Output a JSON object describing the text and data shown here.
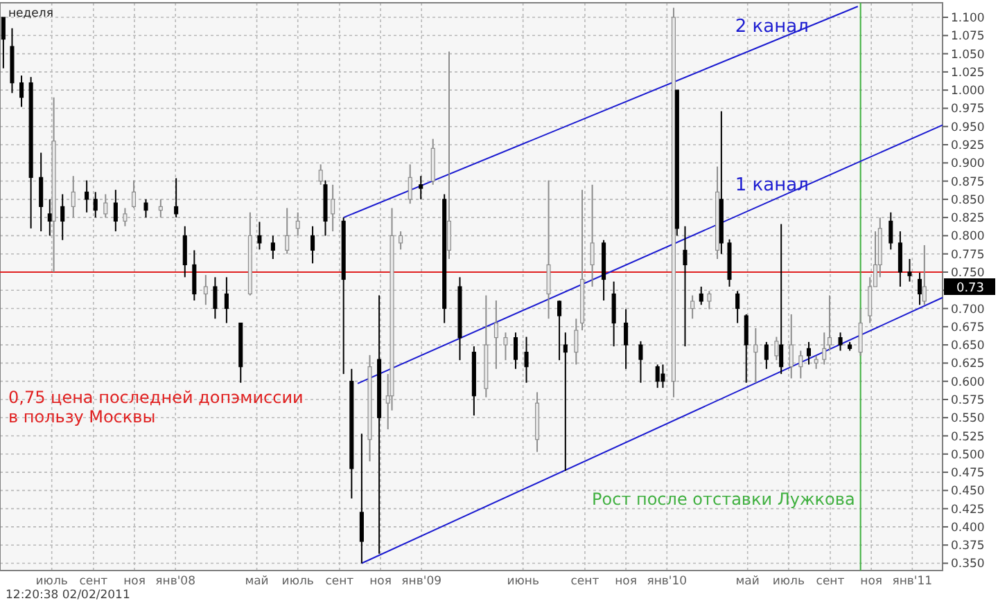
{
  "chart_data": {
    "type": "candlestick",
    "title": "неделя",
    "x": [
      "2007-04-20",
      "2007-05-03",
      "2007-05-17",
      "2007-05-31",
      "2007-06-15",
      "2007-06-28",
      "2007-07-04",
      "2007-07-17",
      "2007-08-02",
      "2007-08-22",
      "2007-09-04",
      "2007-09-19",
      "2007-10-04",
      "2007-10-18",
      "2007-10-31",
      "2007-11-18",
      "2007-12-10",
      "2008-01-02",
      "2008-01-15",
      "2008-01-29",
      "2008-02-15",
      "2008-02-29",
      "2008-03-17",
      "2008-04-07",
      "2008-04-21",
      "2008-05-05",
      "2008-05-25",
      "2008-06-15",
      "2008-07-01",
      "2008-07-23",
      "2008-08-04",
      "2008-08-11",
      "2008-08-22",
      "2008-09-07",
      "2008-09-19",
      "2008-10-04",
      "2008-10-16",
      "2008-10-30",
      "2008-11-12",
      "2008-11-18",
      "2008-12-01",
      "2008-12-15",
      "2008-12-31",
      "2009-01-18",
      "2009-02-04",
      "2009-02-11",
      "2009-02-27",
      "2009-03-20",
      "2009-04-07",
      "2009-04-22",
      "2009-05-06",
      "2009-05-21",
      "2009-06-06",
      "2009-06-22",
      "2009-07-09",
      "2009-07-25",
      "2009-08-03",
      "2009-08-19",
      "2009-08-28",
      "2009-09-12",
      "2009-09-29",
      "2009-10-14",
      "2009-11-01",
      "2009-11-23",
      "2009-12-18",
      "2009-12-26",
      "2010-01-11",
      "2010-01-16",
      "2010-01-28",
      "2010-02-08",
      "2010-02-21",
      "2010-03-05",
      "2010-03-17",
      "2010-03-23",
      "2010-04-04",
      "2010-04-16",
      "2010-04-29",
      "2010-05-13",
      "2010-05-29",
      "2010-06-13",
      "2010-06-20",
      "2010-07-05",
      "2010-07-19",
      "2010-07-31",
      "2010-08-11",
      "2010-08-23",
      "2010-08-31",
      "2010-09-16",
      "2010-09-30",
      "2010-10-16",
      "2010-10-30",
      "2010-11-07",
      "2010-11-14",
      "2010-11-30",
      "2010-12-14",
      "2010-12-28",
      "2011-01-12",
      "2011-01-19"
    ],
    "ohlc": [
      [
        1.1,
        1.1,
        1.03,
        1.07
      ],
      [
        1.06,
        1.085,
        0.996,
        1.01
      ],
      [
        1.01,
        1.02,
        0.977,
        0.99
      ],
      [
        1.01,
        1.018,
        0.81,
        0.88
      ],
      [
        0.88,
        0.914,
        0.806,
        0.84
      ],
      [
        0.83,
        0.85,
        0.8,
        0.82
      ],
      [
        0.82,
        0.99,
        0.75,
        0.93
      ],
      [
        0.84,
        0.857,
        0.794,
        0.82
      ],
      [
        0.84,
        0.882,
        0.825,
        0.86
      ],
      [
        0.86,
        0.876,
        0.832,
        0.85
      ],
      [
        0.85,
        0.86,
        0.825,
        0.835
      ],
      [
        0.83,
        0.857,
        0.825,
        0.845
      ],
      [
        0.845,
        0.863,
        0.806,
        0.82
      ],
      [
        0.82,
        0.838,
        0.813,
        0.83
      ],
      [
        0.84,
        0.876,
        0.838,
        0.86
      ],
      [
        0.845,
        0.85,
        0.825,
        0.835
      ],
      [
        0.835,
        0.85,
        0.825,
        0.84
      ],
      [
        0.84,
        0.879,
        0.825,
        0.83
      ],
      [
        0.8,
        0.813,
        0.743,
        0.76
      ],
      [
        0.76,
        0.78,
        0.711,
        0.72
      ],
      [
        0.72,
        0.746,
        0.705,
        0.73
      ],
      [
        0.73,
        0.743,
        0.686,
        0.7
      ],
      [
        0.72,
        0.743,
        0.68,
        0.7
      ],
      [
        0.68,
        0.68,
        0.598,
        0.62
      ],
      [
        0.72,
        0.832,
        0.718,
        0.8
      ],
      [
        0.8,
        0.819,
        0.781,
        0.79
      ],
      [
        0.79,
        0.8,
        0.768,
        0.78
      ],
      [
        0.78,
        0.838,
        0.775,
        0.8
      ],
      [
        0.81,
        0.832,
        0.8,
        0.82
      ],
      [
        0.8,
        0.813,
        0.762,
        0.78
      ],
      [
        0.875,
        0.898,
        0.87,
        0.89
      ],
      [
        0.87,
        0.876,
        0.8,
        0.82
      ],
      [
        0.83,
        0.87,
        0.806,
        0.85
      ],
      [
        0.82,
        0.825,
        0.61,
        0.74
      ],
      [
        0.6,
        0.617,
        0.439,
        0.48
      ],
      [
        0.42,
        0.528,
        0.35,
        0.38
      ],
      [
        0.52,
        0.636,
        0.49,
        0.62
      ],
      [
        0.63,
        0.718,
        0.363,
        0.55
      ],
      [
        0.57,
        0.61,
        0.534,
        0.58
      ],
      [
        0.58,
        0.838,
        0.56,
        0.8
      ],
      [
        0.79,
        0.806,
        0.781,
        0.8
      ],
      [
        0.85,
        0.898,
        0.844,
        0.88
      ],
      [
        0.87,
        0.882,
        0.85,
        0.865
      ],
      [
        0.875,
        0.933,
        0.87,
        0.92
      ],
      [
        0.85,
        0.857,
        0.68,
        0.7
      ],
      [
        0.78,
        1.053,
        0.768,
        0.82
      ],
      [
        0.73,
        0.743,
        0.629,
        0.66
      ],
      [
        0.64,
        0.648,
        0.553,
        0.58
      ],
      [
        0.59,
        0.718,
        0.578,
        0.65
      ],
      [
        0.66,
        0.711,
        0.617,
        0.68
      ],
      [
        0.65,
        0.667,
        0.629,
        0.66
      ],
      [
        0.66,
        0.667,
        0.617,
        0.63
      ],
      [
        0.64,
        0.661,
        0.598,
        0.62
      ],
      [
        0.52,
        0.585,
        0.503,
        0.57
      ],
      [
        0.72,
        0.876,
        0.686,
        0.76
      ],
      [
        0.71,
        0.711,
        0.629,
        0.69
      ],
      [
        0.65,
        0.667,
        0.477,
        0.64
      ],
      [
        0.64,
        0.686,
        0.623,
        0.67
      ],
      [
        0.68,
        0.863,
        0.67,
        0.74
      ],
      [
        0.76,
        0.87,
        0.73,
        0.79
      ],
      [
        0.79,
        0.794,
        0.711,
        0.74
      ],
      [
        0.72,
        0.737,
        0.648,
        0.68
      ],
      [
        0.68,
        0.699,
        0.617,
        0.65
      ],
      [
        0.65,
        0.655,
        0.598,
        0.63
      ],
      [
        0.62,
        0.623,
        0.591,
        0.6
      ],
      [
        0.61,
        0.623,
        0.591,
        0.6
      ],
      [
        0.6,
        1.113,
        0.578,
        1.1
      ],
      [
        1.0,
        1.0,
        0.8,
        0.81
      ],
      [
        0.78,
        0.813,
        0.648,
        0.76
      ],
      [
        0.7,
        0.718,
        0.686,
        0.71
      ],
      [
        0.72,
        0.73,
        0.705,
        0.71
      ],
      [
        0.71,
        0.724,
        0.699,
        0.72
      ],
      [
        0.78,
        0.895,
        0.768,
        0.86
      ],
      [
        0.85,
        0.971,
        0.775,
        0.79
      ],
      [
        0.79,
        0.795,
        0.73,
        0.74
      ],
      [
        0.72,
        0.724,
        0.68,
        0.7
      ],
      [
        0.69,
        0.692,
        0.598,
        0.65
      ],
      [
        0.64,
        0.673,
        0.598,
        0.65
      ],
      [
        0.65,
        0.654,
        0.617,
        0.63
      ],
      [
        0.635,
        0.661,
        0.629,
        0.655
      ],
      [
        0.65,
        0.816,
        0.61,
        0.62
      ],
      [
        0.62,
        0.692,
        0.604,
        0.65
      ],
      [
        0.62,
        0.642,
        0.604,
        0.635
      ],
      [
        0.645,
        0.654,
        0.623,
        0.635
      ],
      [
        0.625,
        0.635,
        0.617,
        0.63
      ],
      [
        0.63,
        0.667,
        0.623,
        0.645
      ],
      [
        0.65,
        0.718,
        0.642,
        0.66
      ],
      [
        0.66,
        0.667,
        0.642,
        0.65
      ],
      [
        0.65,
        0.654,
        0.642,
        0.645
      ],
      [
        0.64,
        0.699,
        0.635,
        0.68
      ],
      [
        0.69,
        0.743,
        0.68,
        0.73
      ],
      [
        0.73,
        0.806,
        0.73,
        0.76
      ],
      [
        0.76,
        0.825,
        0.743,
        0.81
      ],
      [
        0.82,
        0.832,
        0.781,
        0.79
      ],
      [
        0.79,
        0.806,
        0.73,
        0.75
      ],
      [
        0.75,
        0.768,
        0.737,
        0.745
      ],
      [
        0.74,
        0.749,
        0.705,
        0.72
      ],
      [
        0.71,
        0.787,
        0.705,
        0.73
      ]
    ],
    "series": [
      {
        "type": "line",
        "color": "#1a1ad0",
        "x": [
          "2008-10-04",
          "2011-02-15"
        ],
        "values": [
          0.35,
          0.715
        ]
      },
      {
        "type": "line",
        "name": "1 канал",
        "color": "#1a1ad0",
        "x": [
          "2008-09-28",
          "2011-02-15"
        ],
        "values": [
          0.597,
          0.952
        ]
      },
      {
        "type": "line",
        "name": "2 канал",
        "color": "#1a1ad0",
        "x": [
          "2008-09-07",
          "2010-10-12"
        ],
        "values": [
          0.825,
          1.115
        ]
      }
    ],
    "xlim": [
      "2007-04-15",
      "2011-02-15"
    ],
    "xticks": [
      {
        "value": "2007-07-01",
        "label": "июль"
      },
      {
        "value": "2007-09-01",
        "label": "сент"
      },
      {
        "value": "2007-11-01",
        "label": "ноя"
      },
      {
        "value": "2008-01-01",
        "label": "янв'08"
      },
      {
        "value": "2008-05-01",
        "label": "май"
      },
      {
        "value": "2008-07-01",
        "label": "июль"
      },
      {
        "value": "2008-09-01",
        "label": "сент"
      },
      {
        "value": "2008-11-01",
        "label": "ноя"
      },
      {
        "value": "2009-01-01",
        "label": "янв'09"
      },
      {
        "value": "2009-06-01",
        "label": "июнь"
      },
      {
        "value": "2009-09-01",
        "label": "сент"
      },
      {
        "value": "2009-11-01",
        "label": "ноя"
      },
      {
        "value": "2010-01-01",
        "label": "янв'10"
      },
      {
        "value": "2010-05-01",
        "label": "май"
      },
      {
        "value": "2010-07-01",
        "label": "июль"
      },
      {
        "value": "2010-09-01",
        "label": "сент"
      },
      {
        "value": "2010-11-01",
        "label": "ноя"
      },
      {
        "value": "2011-01-01",
        "label": "янв'11"
      }
    ],
    "ylim": [
      0.34,
      1.12
    ],
    "yticks": [
      {
        "value": 0.35,
        "label": "0.350"
      },
      {
        "value": 0.375,
        "label": "0.375"
      },
      {
        "value": 0.4,
        "label": "0.400"
      },
      {
        "value": 0.425,
        "label": "0.425"
      },
      {
        "value": 0.45,
        "label": "0.450"
      },
      {
        "value": 0.475,
        "label": "0.475"
      },
      {
        "value": 0.5,
        "label": "0.500"
      },
      {
        "value": 0.525,
        "label": "0.525"
      },
      {
        "value": 0.55,
        "label": "0.550"
      },
      {
        "value": 0.575,
        "label": "0.575"
      },
      {
        "value": 0.6,
        "label": "0.600"
      },
      {
        "value": 0.625,
        "label": "0.625"
      },
      {
        "value": 0.65,
        "label": "0.650"
      },
      {
        "value": 0.675,
        "label": "0.675"
      },
      {
        "value": 0.7,
        "label": "0.700"
      },
      {
        "value": 0.725,
        "label": null
      },
      {
        "value": 0.75,
        "label": "0.750"
      },
      {
        "value": 0.775,
        "label": "0.775"
      },
      {
        "value": 0.8,
        "label": "0.800"
      },
      {
        "value": 0.825,
        "label": "0.825"
      },
      {
        "value": 0.85,
        "label": "0.850"
      },
      {
        "value": 0.875,
        "label": "0.875"
      },
      {
        "value": 0.9,
        "label": "0.900"
      },
      {
        "value": 0.925,
        "label": "0.925"
      },
      {
        "value": 0.95,
        "label": "0.950"
      },
      {
        "value": 0.975,
        "label": "0.975"
      },
      {
        "value": 1.0,
        "label": "1.000"
      },
      {
        "value": 1.025,
        "label": "1.025"
      },
      {
        "value": 1.05,
        "label": "1.050"
      },
      {
        "value": 1.075,
        "label": "1.075"
      },
      {
        "value": 1.1,
        "label": "1.100"
      }
    ],
    "grid": true,
    "ref_lines": [
      {
        "axis": "y",
        "value": 0.75,
        "label": "0,75 цена последней допэмиссии в пользу Москвы",
        "color": "#e02020"
      },
      {
        "axis": "x",
        "value": "2010-10-16",
        "label": "Рост после отставки Лужкова",
        "color": "#40b040"
      }
    ],
    "annotations": [
      {
        "text": "0.73",
        "y": 0.73
      },
      "12:20:38 02/02/2011"
    ]
  }
}
